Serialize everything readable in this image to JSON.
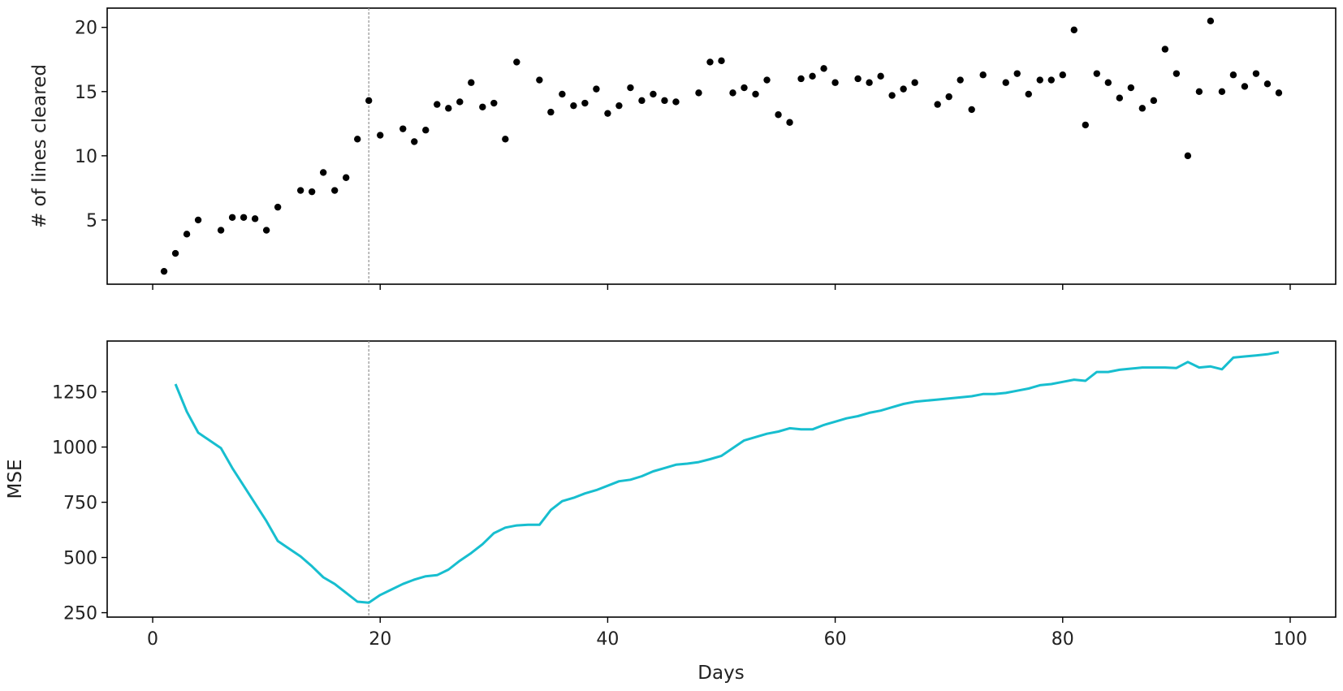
{
  "chart_data": [
    {
      "type": "scatter",
      "ylabel": "# of lines cleared",
      "xlim": [
        -4,
        104
      ],
      "ylim": [
        0,
        21.5
      ],
      "yticks": [
        5,
        10,
        15,
        20
      ],
      "marker_color": "#000000",
      "vline": 19,
      "points": [
        [
          1,
          1
        ],
        [
          2,
          2.4
        ],
        [
          3,
          3.9
        ],
        [
          4,
          5
        ],
        [
          6,
          4.2
        ],
        [
          7,
          5.2
        ],
        [
          8,
          5.2
        ],
        [
          9,
          5.1
        ],
        [
          10,
          4.2
        ],
        [
          11,
          6
        ],
        [
          13,
          7.3
        ],
        [
          14,
          7.2
        ],
        [
          15,
          8.7
        ],
        [
          16,
          7.3
        ],
        [
          17,
          8.3
        ],
        [
          18,
          11.3
        ],
        [
          19,
          14.3
        ],
        [
          20,
          11.6
        ],
        [
          22,
          12.1
        ],
        [
          23,
          11.1
        ],
        [
          24,
          12
        ],
        [
          25,
          14
        ],
        [
          26,
          13.7
        ],
        [
          27,
          14.2
        ],
        [
          28,
          15.7
        ],
        [
          29,
          13.8
        ],
        [
          30,
          14.1
        ],
        [
          31,
          11.3
        ],
        [
          32,
          17.3
        ],
        [
          34,
          15.9
        ],
        [
          35,
          13.4
        ],
        [
          36,
          14.8
        ],
        [
          37,
          13.9
        ],
        [
          38,
          14.1
        ],
        [
          39,
          15.2
        ],
        [
          40,
          13.3
        ],
        [
          41,
          13.9
        ],
        [
          42,
          15.3
        ],
        [
          43,
          14.3
        ],
        [
          44,
          14.8
        ],
        [
          45,
          14.3
        ],
        [
          46,
          14.2
        ],
        [
          48,
          14.9
        ],
        [
          49,
          17.3
        ],
        [
          50,
          17.4
        ],
        [
          51,
          14.9
        ],
        [
          52,
          15.3
        ],
        [
          53,
          14.8
        ],
        [
          54,
          15.9
        ],
        [
          55,
          13.2
        ],
        [
          56,
          12.6
        ],
        [
          57,
          16
        ],
        [
          58,
          16.2
        ],
        [
          59,
          16.8
        ],
        [
          60,
          15.7
        ],
        [
          62,
          16
        ],
        [
          63,
          15.7
        ],
        [
          64,
          16.2
        ],
        [
          65,
          14.7
        ],
        [
          66,
          15.2
        ],
        [
          67,
          15.7
        ],
        [
          69,
          14
        ],
        [
          70,
          14.6
        ],
        [
          71,
          15.9
        ],
        [
          72,
          13.6
        ],
        [
          73,
          16.3
        ],
        [
          75,
          15.7
        ],
        [
          76,
          16.4
        ],
        [
          77,
          14.8
        ],
        [
          78,
          15.9
        ],
        [
          79,
          15.9
        ],
        [
          80,
          16.3
        ],
        [
          81,
          19.8
        ],
        [
          82,
          12.4
        ],
        [
          83,
          16.4
        ],
        [
          84,
          15.7
        ],
        [
          85,
          14.5
        ],
        [
          86,
          15.3
        ],
        [
          87,
          13.7
        ],
        [
          88,
          14.3
        ],
        [
          89,
          18.3
        ],
        [
          90,
          16.4
        ],
        [
          91,
          10
        ],
        [
          92,
          15
        ],
        [
          93,
          20.5
        ],
        [
          94,
          15
        ],
        [
          95,
          16.3
        ],
        [
          96,
          15.4
        ],
        [
          97,
          16.4
        ],
        [
          98,
          15.6
        ],
        [
          99,
          14.9
        ]
      ]
    },
    {
      "type": "line",
      "xlabel": "Days",
      "ylabel": "MSE",
      "xlim": [
        -4,
        104
      ],
      "ylim": [
        230,
        1480
      ],
      "xticks": [
        0,
        20,
        40,
        60,
        80,
        100
      ],
      "yticks": [
        250,
        500,
        750,
        1000,
        1250
      ],
      "line_color": "#17becf",
      "vline": 19,
      "points": [
        [
          2,
          1285
        ],
        [
          3,
          1160
        ],
        [
          4,
          1065
        ],
        [
          5,
          1030
        ],
        [
          6,
          995
        ],
        [
          7,
          905
        ],
        [
          8,
          825
        ],
        [
          9,
          745
        ],
        [
          10,
          665
        ],
        [
          11,
          575
        ],
        [
          12,
          540
        ],
        [
          13,
          505
        ],
        [
          14,
          460
        ],
        [
          15,
          410
        ],
        [
          16,
          380
        ],
        [
          17,
          340
        ],
        [
          18,
          300
        ],
        [
          19,
          295
        ],
        [
          20,
          330
        ],
        [
          21,
          355
        ],
        [
          22,
          380
        ],
        [
          23,
          400
        ],
        [
          24,
          415
        ],
        [
          25,
          420
        ],
        [
          26,
          445
        ],
        [
          27,
          485
        ],
        [
          28,
          520
        ],
        [
          29,
          560
        ],
        [
          30,
          610
        ],
        [
          31,
          635
        ],
        [
          32,
          645
        ],
        [
          33,
          648
        ],
        [
          34,
          648
        ],
        [
          35,
          715
        ],
        [
          36,
          755
        ],
        [
          37,
          770
        ],
        [
          38,
          790
        ],
        [
          39,
          805
        ],
        [
          40,
          825
        ],
        [
          41,
          845
        ],
        [
          42,
          852
        ],
        [
          43,
          868
        ],
        [
          44,
          890
        ],
        [
          45,
          905
        ],
        [
          46,
          920
        ],
        [
          47,
          925
        ],
        [
          48,
          932
        ],
        [
          49,
          945
        ],
        [
          50,
          960
        ],
        [
          51,
          995
        ],
        [
          52,
          1030
        ],
        [
          53,
          1045
        ],
        [
          54,
          1060
        ],
        [
          55,
          1070
        ],
        [
          56,
          1085
        ],
        [
          57,
          1080
        ],
        [
          58,
          1080
        ],
        [
          59,
          1100
        ],
        [
          60,
          1115
        ],
        [
          61,
          1130
        ],
        [
          62,
          1140
        ],
        [
          63,
          1155
        ],
        [
          64,
          1165
        ],
        [
          65,
          1180
        ],
        [
          66,
          1195
        ],
        [
          67,
          1205
        ],
        [
          68,
          1210
        ],
        [
          69,
          1215
        ],
        [
          70,
          1220
        ],
        [
          71,
          1225
        ],
        [
          72,
          1230
        ],
        [
          73,
          1240
        ],
        [
          74,
          1240
        ],
        [
          75,
          1245
        ],
        [
          76,
          1255
        ],
        [
          77,
          1265
        ],
        [
          78,
          1280
        ],
        [
          79,
          1285
        ],
        [
          80,
          1295
        ],
        [
          81,
          1305
        ],
        [
          82,
          1300
        ],
        [
          83,
          1340
        ],
        [
          84,
          1340
        ],
        [
          85,
          1350
        ],
        [
          86,
          1355
        ],
        [
          87,
          1360
        ],
        [
          88,
          1360
        ],
        [
          89,
          1360
        ],
        [
          90,
          1358
        ],
        [
          91,
          1385
        ],
        [
          92,
          1360
        ],
        [
          93,
          1365
        ],
        [
          94,
          1352
        ],
        [
          95,
          1405
        ],
        [
          96,
          1410
        ],
        [
          97,
          1415
        ],
        [
          98,
          1420
        ],
        [
          99,
          1430
        ]
      ]
    }
  ]
}
